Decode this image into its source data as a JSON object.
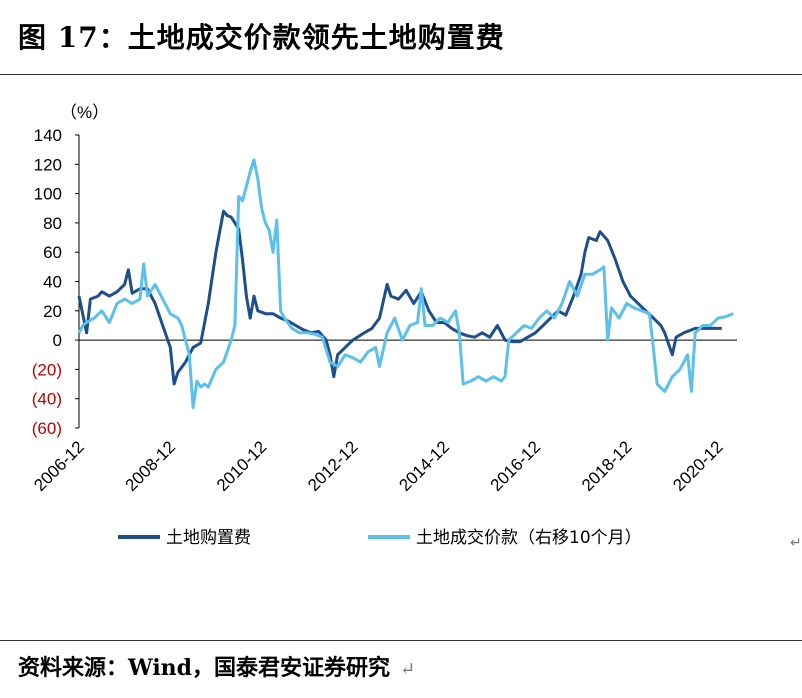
{
  "title": "图 17：土地成交价款领先土地购置费",
  "source": "资料来源：Wind，国泰君安证券研究",
  "source_mark": "↵",
  "edge_mark": "↵",
  "chart_data": {
    "type": "line",
    "unit_label": "（%）",
    "ylim": [
      -60,
      140
    ],
    "y_ticks": [
      140,
      120,
      100,
      80,
      60,
      40,
      20,
      0,
      -20,
      -40,
      -60
    ],
    "y_tick_labels": [
      "140",
      "120",
      "100",
      "80",
      "60",
      "40",
      "20",
      "0",
      "(20)",
      "(40)",
      "(60)"
    ],
    "negative_label_color": "#c00000",
    "x_tick_labels": [
      "2006-12",
      "2008-12",
      "2010-12",
      "2012-12",
      "2014-12",
      "2016-12",
      "2018-12",
      "2020-12"
    ],
    "x_tick_dates": [
      "2006-12",
      "2008-12",
      "2010-12",
      "2012-12",
      "2014-12",
      "2016-12",
      "2018-12",
      "2020-12"
    ],
    "grid": false,
    "legend_placement": "bottom",
    "series": [
      {
        "name": "土地购置费",
        "color": "#1f4e8c",
        "points": [
          [
            "2006-12",
            30
          ],
          [
            "2007-02",
            5
          ],
          [
            "2007-03",
            28
          ],
          [
            "2007-05",
            30
          ],
          [
            "2007-06",
            33
          ],
          [
            "2007-08",
            30
          ],
          [
            "2007-10",
            33
          ],
          [
            "2007-12",
            38
          ],
          [
            "2008-01",
            48
          ],
          [
            "2008-02",
            32
          ],
          [
            "2008-04",
            35
          ],
          [
            "2008-06",
            35
          ],
          [
            "2008-08",
            25
          ],
          [
            "2008-10",
            10
          ],
          [
            "2008-12",
            -5
          ],
          [
            "2009-01",
            -30
          ],
          [
            "2009-02",
            -22
          ],
          [
            "2009-04",
            -15
          ],
          [
            "2009-06",
            -5
          ],
          [
            "2009-08",
            -2
          ],
          [
            "2009-10",
            25
          ],
          [
            "2009-12",
            60
          ],
          [
            "2010-02",
            88
          ],
          [
            "2010-03",
            85
          ],
          [
            "2010-04",
            84
          ],
          [
            "2010-05",
            80
          ],
          [
            "2010-06",
            76
          ],
          [
            "2010-07",
            55
          ],
          [
            "2010-08",
            30
          ],
          [
            "2010-09",
            15
          ],
          [
            "2010-10",
            30
          ],
          [
            "2010-11",
            20
          ],
          [
            "2011-01",
            18
          ],
          [
            "2011-03",
            18
          ],
          [
            "2011-05",
            15
          ],
          [
            "2011-07",
            13
          ],
          [
            "2011-09",
            10
          ],
          [
            "2011-11",
            7
          ],
          [
            "2012-01",
            5
          ],
          [
            "2012-03",
            6
          ],
          [
            "2012-05",
            0
          ],
          [
            "2012-06",
            -10
          ],
          [
            "2012-07",
            -25
          ],
          [
            "2012-08",
            -10
          ],
          [
            "2012-10",
            -5
          ],
          [
            "2012-12",
            0
          ],
          [
            "2013-03",
            5
          ],
          [
            "2013-05",
            8
          ],
          [
            "2013-07",
            15
          ],
          [
            "2013-09",
            38
          ],
          [
            "2013-10",
            30
          ],
          [
            "2013-12",
            28
          ],
          [
            "2014-02",
            34
          ],
          [
            "2014-04",
            25
          ],
          [
            "2014-06",
            33
          ],
          [
            "2014-08",
            20
          ],
          [
            "2014-10",
            12
          ],
          [
            "2014-12",
            12
          ],
          [
            "2015-02",
            8
          ],
          [
            "2015-04",
            5
          ],
          [
            "2015-06",
            3
          ],
          [
            "2015-08",
            2
          ],
          [
            "2015-10",
            5
          ],
          [
            "2015-12",
            2
          ],
          [
            "2016-02",
            10
          ],
          [
            "2016-04",
            0
          ],
          [
            "2016-06",
            -1
          ],
          [
            "2016-08",
            -1
          ],
          [
            "2016-10",
            2
          ],
          [
            "2016-12",
            5
          ],
          [
            "2017-02",
            10
          ],
          [
            "2017-04",
            15
          ],
          [
            "2017-06",
            20
          ],
          [
            "2017-08",
            17
          ],
          [
            "2017-10",
            30
          ],
          [
            "2017-12",
            45
          ],
          [
            "2018-01",
            60
          ],
          [
            "2018-02",
            70
          ],
          [
            "2018-04",
            68
          ],
          [
            "2018-05",
            74
          ],
          [
            "2018-07",
            68
          ],
          [
            "2018-09",
            55
          ],
          [
            "2018-11",
            40
          ],
          [
            "2019-01",
            30
          ],
          [
            "2019-03",
            25
          ],
          [
            "2019-05",
            20
          ],
          [
            "2019-07",
            15
          ],
          [
            "2019-09",
            10
          ],
          [
            "2019-10",
            5
          ],
          [
            "2019-12",
            -10
          ],
          [
            "2020-01",
            2
          ],
          [
            "2020-03",
            5
          ],
          [
            "2020-06",
            8
          ],
          [
            "2020-09",
            8
          ],
          [
            "2020-11",
            8
          ],
          [
            "2021-01",
            8
          ]
        ]
      },
      {
        "name": "土地成交价款（右移10个月）",
        "color": "#5bc0eb",
        "points": [
          [
            "2006-12",
            5
          ],
          [
            "2007-01",
            10
          ],
          [
            "2007-02",
            12
          ],
          [
            "2007-04",
            15
          ],
          [
            "2007-06",
            20
          ],
          [
            "2007-08",
            12
          ],
          [
            "2007-10",
            25
          ],
          [
            "2007-12",
            28
          ],
          [
            "2008-02",
            25
          ],
          [
            "2008-04",
            28
          ],
          [
            "2008-05",
            52
          ],
          [
            "2008-06",
            30
          ],
          [
            "2008-08",
            38
          ],
          [
            "2008-10",
            28
          ],
          [
            "2008-12",
            18
          ],
          [
            "2009-02",
            15
          ],
          [
            "2009-03",
            10
          ],
          [
            "2009-05",
            -10
          ],
          [
            "2009-06",
            -46
          ],
          [
            "2009-07",
            -28
          ],
          [
            "2009-08",
            -32
          ],
          [
            "2009-09",
            -30
          ],
          [
            "2009-10",
            -32
          ],
          [
            "2009-12",
            -20
          ],
          [
            "2010-02",
            -15
          ],
          [
            "2010-04",
            0
          ],
          [
            "2010-05",
            10
          ],
          [
            "2010-06",
            98
          ],
          [
            "2010-07",
            95
          ],
          [
            "2010-08",
            105
          ],
          [
            "2010-09",
            115
          ],
          [
            "2010-10",
            123
          ],
          [
            "2010-11",
            110
          ],
          [
            "2010-12",
            90
          ],
          [
            "2011-01",
            80
          ],
          [
            "2011-02",
            75
          ],
          [
            "2011-03",
            60
          ],
          [
            "2011-04",
            82
          ],
          [
            "2011-05",
            20
          ],
          [
            "2011-06",
            15
          ],
          [
            "2011-08",
            8
          ],
          [
            "2011-10",
            5
          ],
          [
            "2011-12",
            5
          ],
          [
            "2012-02",
            4
          ],
          [
            "2012-04",
            2
          ],
          [
            "2012-06",
            -15
          ],
          [
            "2012-08",
            -18
          ],
          [
            "2012-10",
            -10
          ],
          [
            "2012-12",
            -12
          ],
          [
            "2013-02",
            -15
          ],
          [
            "2013-04",
            -8
          ],
          [
            "2013-06",
            -5
          ],
          [
            "2013-07",
            -18
          ],
          [
            "2013-09",
            5
          ],
          [
            "2013-11",
            15
          ],
          [
            "2014-01",
            0
          ],
          [
            "2014-03",
            10
          ],
          [
            "2014-05",
            12
          ],
          [
            "2014-06",
            35
          ],
          [
            "2014-07",
            10
          ],
          [
            "2014-09",
            10
          ],
          [
            "2014-11",
            15
          ],
          [
            "2015-01",
            12
          ],
          [
            "2015-03",
            20
          ],
          [
            "2015-04",
            5
          ],
          [
            "2015-05",
            -30
          ],
          [
            "2015-07",
            -28
          ],
          [
            "2015-09",
            -25
          ],
          [
            "2015-11",
            -28
          ],
          [
            "2016-01",
            -25
          ],
          [
            "2016-03",
            -28
          ],
          [
            "2016-04",
            -25
          ],
          [
            "2016-05",
            0
          ],
          [
            "2016-07",
            5
          ],
          [
            "2016-09",
            10
          ],
          [
            "2016-11",
            8
          ],
          [
            "2017-01",
            15
          ],
          [
            "2017-03",
            20
          ],
          [
            "2017-05",
            15
          ],
          [
            "2017-07",
            25
          ],
          [
            "2017-09",
            40
          ],
          [
            "2017-11",
            30
          ],
          [
            "2018-01",
            45
          ],
          [
            "2018-03",
            45
          ],
          [
            "2018-05",
            48
          ],
          [
            "2018-06",
            50
          ],
          [
            "2018-07",
            0
          ],
          [
            "2018-08",
            22
          ],
          [
            "2018-10",
            15
          ],
          [
            "2018-12",
            25
          ],
          [
            "2019-02",
            22
          ],
          [
            "2019-04",
            20
          ],
          [
            "2019-06",
            18
          ],
          [
            "2019-07",
            -5
          ],
          [
            "2019-08",
            -30
          ],
          [
            "2019-10",
            -35
          ],
          [
            "2019-12",
            -25
          ],
          [
            "2020-02",
            -20
          ],
          [
            "2020-04",
            -10
          ],
          [
            "2020-05",
            -35
          ],
          [
            "2020-06",
            5
          ],
          [
            "2020-08",
            10
          ],
          [
            "2020-10",
            10
          ],
          [
            "2020-12",
            15
          ],
          [
            "2021-02",
            16
          ],
          [
            "2021-04",
            18
          ]
        ]
      }
    ]
  }
}
